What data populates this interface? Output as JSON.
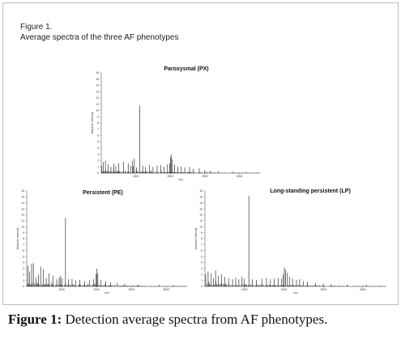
{
  "figure": {
    "heading": "Figure 1.",
    "subheading": "Average spectra of the three AF phenotypes",
    "caption_prefix": "Figure 1:",
    "caption_text": " Detection average spectra from AF phenotypes."
  },
  "chart_data": [
    {
      "type": "line",
      "title": "Paroxysmal (PX)",
      "xlabel": "m/z",
      "ylabel": "Absolute Intensity",
      "xlim": [
        1000,
        3300
      ],
      "ylim": [
        0,
        16
      ],
      "xticks": [
        1500,
        2000,
        2500,
        3000
      ],
      "ytick_step": 1,
      "series": [
        {
          "color": "#111111",
          "peaks": [
            [
              1005,
              1.2
            ],
            [
              1030,
              1.8
            ],
            [
              1060,
              2
            ],
            [
              1100,
              1.4
            ],
            [
              1140,
              1
            ],
            [
              1180,
              1.5
            ],
            [
              1210,
              1.1
            ],
            [
              1250,
              1.6
            ],
            [
              1320,
              1.8
            ],
            [
              1390,
              1.6
            ],
            [
              1430,
              1.2
            ],
            [
              1452,
              2
            ],
            [
              1465,
              1.1
            ],
            [
              1480,
              2.3
            ],
            [
              1510,
              0.9
            ],
            [
              1556,
              10.8
            ],
            [
              1600,
              1.2
            ],
            [
              1640,
              1
            ],
            [
              1700,
              1.3
            ],
            [
              1750,
              1
            ],
            [
              1810,
              1.2
            ],
            [
              1860,
              1.3
            ],
            [
              1910,
              1
            ],
            [
              1960,
              1.4
            ],
            [
              1990,
              1.6
            ],
            [
              2003,
              2.6
            ],
            [
              2012,
              3
            ],
            [
              2030,
              2.2
            ],
            [
              2060,
              1.4
            ],
            [
              2110,
              1
            ],
            [
              2160,
              1.1
            ],
            [
              2210,
              0.9
            ],
            [
              2280,
              1
            ],
            [
              2330,
              0.7
            ],
            [
              2420,
              0.8
            ],
            [
              2500,
              0.5
            ],
            [
              2580,
              0.4
            ],
            [
              2700,
              0.3
            ],
            [
              2900,
              0.25
            ],
            [
              3100,
              0.2
            ]
          ],
          "noise": 0.45
        }
      ]
    },
    {
      "type": "line",
      "title": "Persistent (PE)",
      "xlabel": "m/z",
      "ylabel": "Absolute Intensity",
      "xlim": [
        1000,
        3300
      ],
      "ylim": [
        0,
        16
      ],
      "xticks": [
        1500,
        2000,
        2500,
        3000
      ],
      "ytick_step": 1,
      "series": [
        {
          "color": "#111111",
          "peaks": [
            [
              1020,
              3.5
            ],
            [
              1040,
              2.5
            ],
            [
              1070,
              3.8
            ],
            [
              1095,
              3.9
            ],
            [
              1130,
              1.5
            ],
            [
              1170,
              2
            ],
            [
              1200,
              3.3
            ],
            [
              1240,
              2.9
            ],
            [
              1280,
              1.4
            ],
            [
              1320,
              2.2
            ],
            [
              1380,
              1.8
            ],
            [
              1430,
              1.2
            ],
            [
              1465,
              1.5
            ],
            [
              1485,
              1.8
            ],
            [
              1503,
              1.4
            ],
            [
              1556,
              11.5
            ],
            [
              1600,
              1.2
            ],
            [
              1650,
              1.3
            ],
            [
              1700,
              1
            ],
            [
              1760,
              1.1
            ],
            [
              1830,
              0.9
            ],
            [
              1900,
              1
            ],
            [
              1960,
              1.2
            ],
            [
              1995,
              2.1
            ],
            [
              2006,
              3
            ],
            [
              2020,
              2.2
            ],
            [
              2060,
              1.1
            ],
            [
              2130,
              0.9
            ],
            [
              2200,
              0.7
            ],
            [
              2300,
              0.6
            ],
            [
              2400,
              0.4
            ],
            [
              2600,
              0.3
            ],
            [
              2900,
              0.25
            ],
            [
              3100,
              0.2
            ]
          ],
          "noise": 0.6
        }
      ]
    },
    {
      "type": "line",
      "title": "Long-standing persistent (LP)",
      "xlabel": "m/z",
      "ylabel": "Absolute Intensity",
      "xlim": [
        1000,
        3300
      ],
      "ylim": [
        0,
        16
      ],
      "xticks": [
        1500,
        2000,
        2500,
        3000
      ],
      "ytick_step": 1,
      "series": [
        {
          "color": "#111111",
          "peaks": [
            [
              1010,
              2
            ],
            [
              1040,
              2.5
            ],
            [
              1080,
              2.2
            ],
            [
              1110,
              1.4
            ],
            [
              1135,
              2.7
            ],
            [
              1170,
              1.8
            ],
            [
              1210,
              2
            ],
            [
              1250,
              1.6
            ],
            [
              1300,
              1.4
            ],
            [
              1350,
              1.2
            ],
            [
              1390,
              1.5
            ],
            [
              1430,
              1.2
            ],
            [
              1470,
              1.6
            ],
            [
              1495,
              1.3
            ],
            [
              1556,
              15.2
            ],
            [
              1600,
              1.2
            ],
            [
              1650,
              1.1
            ],
            [
              1720,
              1.3
            ],
            [
              1780,
              1.4
            ],
            [
              1830,
              1.2
            ],
            [
              1880,
              1.3
            ],
            [
              1930,
              1.4
            ],
            [
              1970,
              1.3
            ],
            [
              1990,
              2
            ],
            [
              2006,
              3.2
            ],
            [
              2020,
              2.8
            ],
            [
              2045,
              2.3
            ],
            [
              2070,
              1.6
            ],
            [
              2110,
              1.3
            ],
            [
              2160,
              1.1
            ],
            [
              2200,
              1.2
            ],
            [
              2250,
              0.9
            ],
            [
              2300,
              0.8
            ],
            [
              2400,
              0.6
            ],
            [
              2500,
              0.5
            ],
            [
              2600,
              0.35
            ],
            [
              2800,
              0.3
            ],
            [
              3050,
              0.25
            ]
          ],
          "noise": 0.55
        }
      ]
    }
  ]
}
